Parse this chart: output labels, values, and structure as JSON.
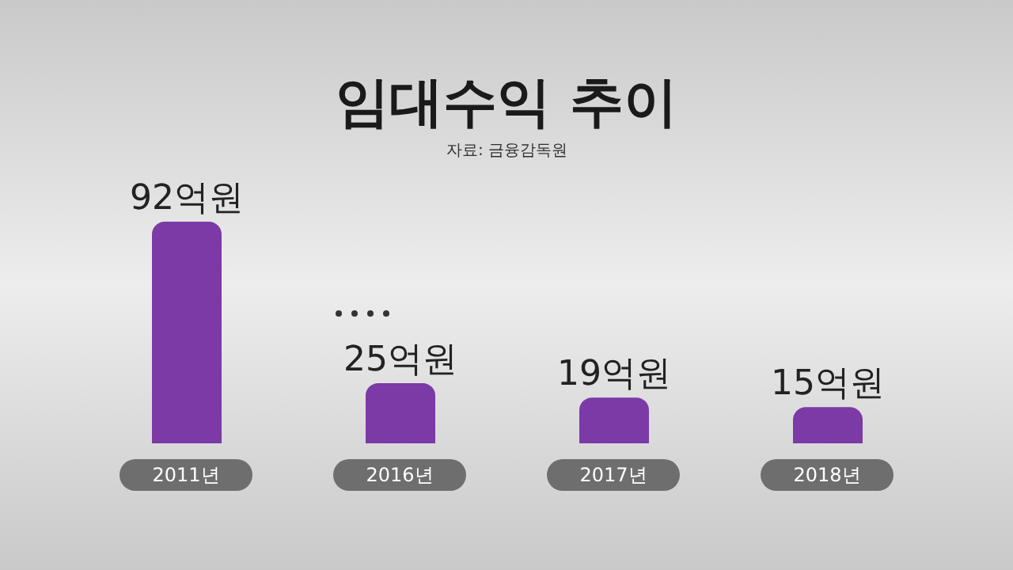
{
  "chart_data": {
    "type": "bar",
    "title": "임대수익 추이",
    "categories": [
      "2011년",
      "2016년",
      "2017년",
      "2018년"
    ],
    "values": [
      92,
      25,
      19,
      15
    ],
    "color": "#7b3aa6",
    "value_labels": [
      "92억원",
      "25억원",
      "19억원",
      "15억원"
    ],
    "annotations": [
      "자료: 금융감독원"
    ],
    "grid": false,
    "legend": false
  }
}
